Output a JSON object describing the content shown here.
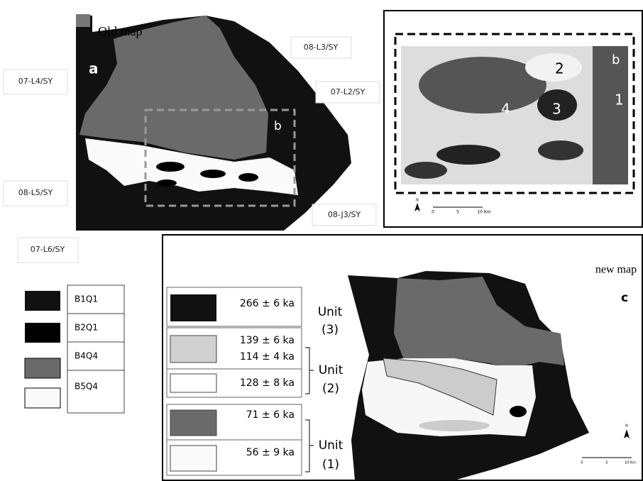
{
  "panel_a": {
    "title": "Old map",
    "letter": "a",
    "inset_letter": "b",
    "sheets": [
      "08-L3/SY",
      "07-L4/SY",
      "07-L2/SY",
      "08-L5/SY",
      "08-J3/SY",
      "07-L6/SY"
    ]
  },
  "panel_b": {
    "letter": "b",
    "zones": [
      "2",
      "1",
      "4",
      "3"
    ],
    "scale": [
      "0",
      "5",
      "10 Km"
    ],
    "north": "N"
  },
  "old_legend": [
    "B1Q1",
    "B2Q1",
    "B4Q4",
    "B5Q4"
  ],
  "panel_c": {
    "title": "new map",
    "letter": "c",
    "ages": [
      "266 ± 6 ka",
      "139 ± 6 ka",
      "114 ± 4 ka",
      "128 ± 8 ka",
      "71 ± 6 ka",
      "56 ± 9 ka"
    ],
    "units": [
      {
        "label": "Unit",
        "number": "(3)"
      },
      {
        "label": "Unit",
        "number": "(2)"
      },
      {
        "label": "Unit",
        "number": "(1)"
      }
    ],
    "scale": [
      "0",
      "5",
      "10 Km"
    ],
    "north": "N"
  }
}
